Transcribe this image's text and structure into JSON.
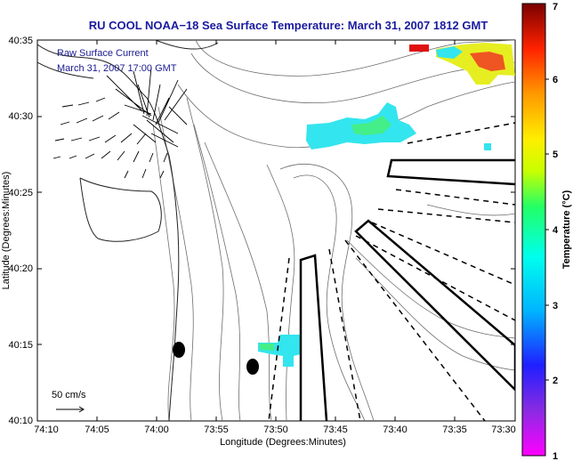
{
  "title": "RU COOL  NOAA−18  Sea Surface Temperature:  March 31, 2007 1812 GMT",
  "annotations": {
    "current_label": "Raw Surface Current",
    "current_time": "March 31, 2007 17:00 GMT",
    "scale_label": "50 cm/s"
  },
  "axes": {
    "xlabel": "Longitude (Degrees:Minutes)",
    "ylabel": "Latitude (Degrees:Minutes)",
    "x_ticks": [
      "74:10",
      "74:05",
      "74:00",
      "73:55",
      "73:50",
      "73:45",
      "73:40",
      "73:35",
      "73:30"
    ],
    "y_ticks": [
      "40:35",
      "40:30",
      "40:25",
      "40:20",
      "40:15",
      "40:10"
    ]
  },
  "colorbar": {
    "label": "Temperature (°C)",
    "ticks": [
      "7",
      "6",
      "5",
      "4",
      "3",
      "2",
      "1"
    ],
    "range": [
      1,
      7
    ],
    "colors": [
      "#ff00ff",
      "#8a2be2",
      "#0000ff",
      "#00ffff",
      "#00ff66",
      "#ccff00",
      "#ffff00",
      "#ff8800",
      "#ff0000",
      "#800000"
    ]
  },
  "colors": {
    "title": "#1a1aa0",
    "annotation": "#1a1a90",
    "contour": "#6e6e6e",
    "coast": "#222222",
    "sst_cyan": "#33e5ee",
    "sst_green": "#44ee88",
    "sst_yellow": "#e6ee22",
    "sst_orange": "#ee5522",
    "sst_red": "#e01111"
  }
}
